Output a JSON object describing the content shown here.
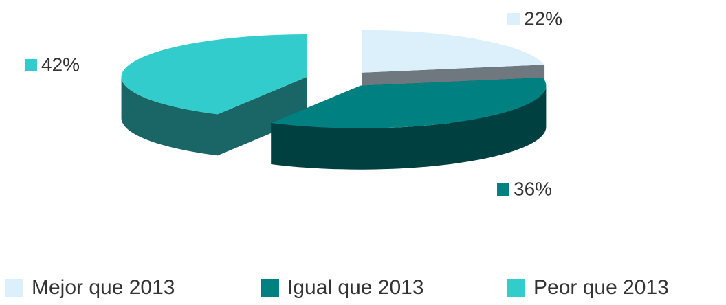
{
  "chart_data": {
    "type": "pie",
    "categories": [
      "Mejor que 2013",
      "Igual que 2013",
      "Peor que 2013"
    ],
    "values": [
      22,
      36,
      42
    ],
    "value_labels": [
      "22%",
      "36%",
      "42%"
    ],
    "colors": [
      "#dbf0fb",
      "#008080",
      "#33cccc"
    ],
    "legend": "bottom"
  }
}
